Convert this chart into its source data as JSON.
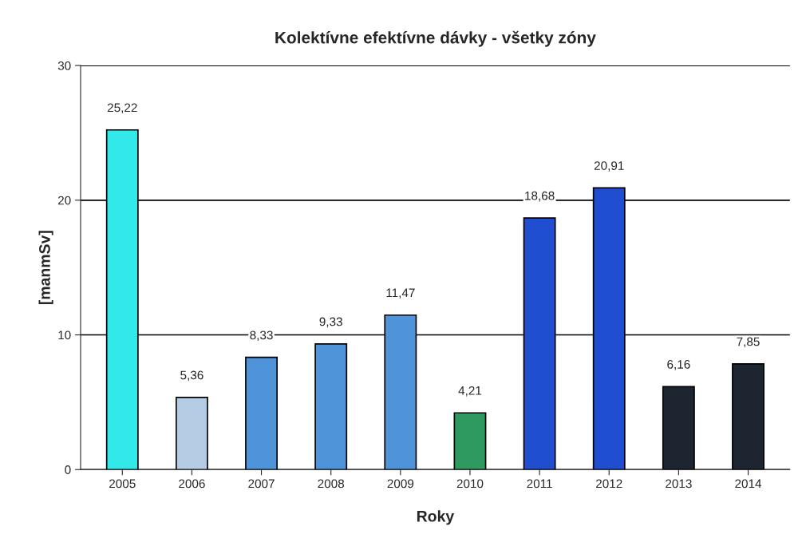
{
  "chart_data": {
    "type": "bar",
    "title": "Kolektívne efektívne dávky - všetky zóny",
    "xlabel": "Roky",
    "ylabel": "[manmSv]",
    "categories": [
      "2005",
      "2006",
      "2007",
      "2008",
      "2009",
      "2010",
      "2011",
      "2012",
      "2013",
      "2014"
    ],
    "values": [
      25.22,
      5.36,
      8.33,
      9.33,
      11.47,
      4.21,
      18.68,
      20.91,
      6.16,
      7.85
    ],
    "value_labels": [
      "25,22",
      "5,36",
      "8,33",
      "9,33",
      "11,47",
      "4,21",
      "18,68",
      "20,91",
      "6,16",
      "7,85"
    ],
    "colors": [
      "#33e8e8",
      "#b4cce4",
      "#4f94d8",
      "#4f94d8",
      "#4f94d8",
      "#2e9a60",
      "#1f4fd0",
      "#1f4fd0",
      "#1c2530",
      "#1c2530"
    ],
    "ylim": [
      0,
      30
    ],
    "yticks": [
      0,
      10,
      20,
      30
    ],
    "grid": "y"
  }
}
